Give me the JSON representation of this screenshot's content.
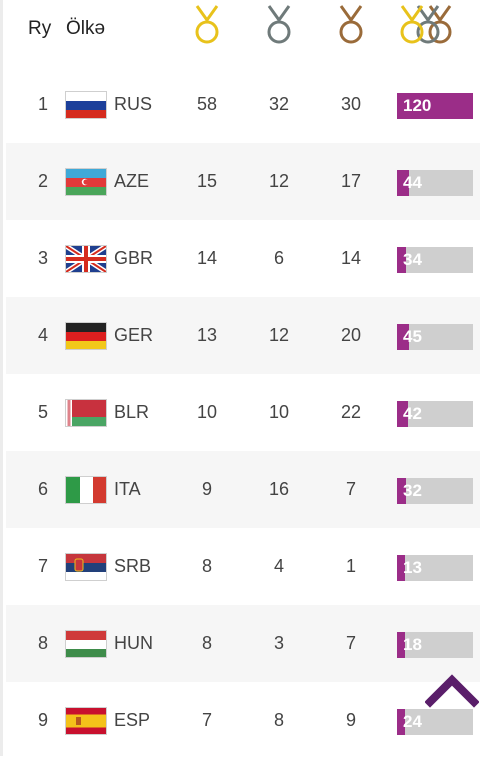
{
  "header": {
    "rank_label": "Ry",
    "country_label": "Ölkə",
    "gold_icon": "gold-medal-icon",
    "silver_icon": "silver-medal-icon",
    "bronze_icon": "bronze-medal-icon",
    "total_icon": "total-medals-icon"
  },
  "colors": {
    "gold": "#e8c21b",
    "silver": "#6f7a7a",
    "bronze": "#9a6b3a",
    "bar_fill": "#9b2d88",
    "bar_track": "#cfcfcf",
    "accent": "#5a1e6a"
  },
  "max_total": 120,
  "rows": [
    {
      "rank": "1",
      "code": "RUS",
      "flag": "russia-flag",
      "gold": "58",
      "silver": "32",
      "bronze": "30",
      "total": "120"
    },
    {
      "rank": "2",
      "code": "AZE",
      "flag": "azerbaijan-flag",
      "gold": "15",
      "silver": "12",
      "bronze": "17",
      "total": "44"
    },
    {
      "rank": "3",
      "code": "GBR",
      "flag": "uk-flag",
      "gold": "14",
      "silver": "6",
      "bronze": "14",
      "total": "34"
    },
    {
      "rank": "4",
      "code": "GER",
      "flag": "germany-flag",
      "gold": "13",
      "silver": "12",
      "bronze": "20",
      "total": "45"
    },
    {
      "rank": "5",
      "code": "BLR",
      "flag": "belarus-flag",
      "gold": "10",
      "silver": "10",
      "bronze": "22",
      "total": "42"
    },
    {
      "rank": "6",
      "code": "ITA",
      "flag": "italy-flag",
      "gold": "9",
      "silver": "16",
      "bronze": "7",
      "total": "32"
    },
    {
      "rank": "7",
      "code": "SRB",
      "flag": "serbia-flag",
      "gold": "8",
      "silver": "4",
      "bronze": "1",
      "total": "13"
    },
    {
      "rank": "8",
      "code": "HUN",
      "flag": "hungary-flag",
      "gold": "8",
      "silver": "3",
      "bronze": "7",
      "total": "18"
    },
    {
      "rank": "9",
      "code": "ESP",
      "flag": "spain-flag",
      "gold": "7",
      "silver": "8",
      "bronze": "9",
      "total": "24"
    }
  ],
  "scroll_top_icon": "chevron-up-icon"
}
